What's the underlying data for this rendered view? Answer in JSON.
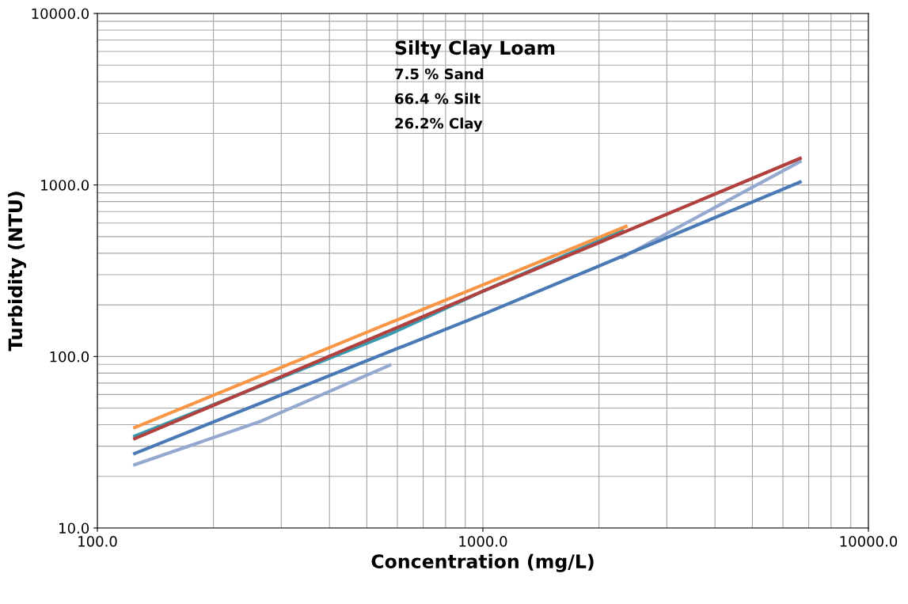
{
  "chart_data": {
    "type": "line",
    "xlabel": "Concentration (mg/L)",
    "ylabel": "Turbidity (NTU)",
    "log": "xy",
    "grid": true,
    "xlim": [
      100,
      10000
    ],
    "xticks": [
      {
        "value": 100,
        "label": "100.0"
      },
      {
        "value": 1000,
        "label": "1000.0"
      },
      {
        "value": 10000,
        "label": "10000.0"
      }
    ],
    "ylim": [
      10,
      10000
    ],
    "yticks": [
      {
        "value": 10,
        "label": "10.0"
      },
      {
        "value": 100,
        "label": "100.0"
      },
      {
        "value": 1000,
        "label": "1000.0"
      },
      {
        "value": 10000,
        "label": "10000.0"
      }
    ],
    "annotations": [
      "Silty Clay Loam",
      "7.5 % Sand",
      "66.4 % Silt",
      "26.2% Clay"
    ],
    "series": [
      {
        "color": "#3a9bb0",
        "x": [
          125,
          573,
          1000,
          2300
        ],
        "values": [
          34.3,
          135,
          240,
          543
        ]
      },
      {
        "color": "#f79646",
        "x": [
          125,
          573,
          2350
        ],
        "values": [
          38.5,
          157,
          573
        ]
      },
      {
        "color": "#95a9d0",
        "x": [
          125,
          266,
          573,
          1000,
          2300,
          6650
        ],
        "values": [
          23.4,
          42,
          89,
          null,
          378,
          1370
        ]
      },
      {
        "color": "#4a7ab5",
        "x": [
          125,
          1000,
          6650
        ],
        "values": [
          27.2,
          176,
          1040
        ]
      },
      {
        "color": "#b0413e",
        "x": [
          125,
          1000,
          6650
        ],
        "values": [
          33.2,
          240,
          1430
        ]
      }
    ]
  }
}
